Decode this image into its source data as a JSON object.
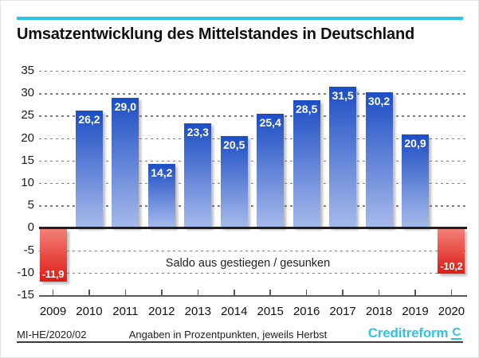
{
  "page": {
    "title": "Umsatzentwicklung des Mittelstandes in Deutschland",
    "footer": {
      "left": "MI-HE/2020/02",
      "center": "Angaben in Prozentpunkten, jeweils Herbst",
      "brand": "Creditreform",
      "brand_symbol": "C"
    },
    "colors": {
      "accent_cyan": "#2BC4E6",
      "bar_blue_top": "#1C4DC4",
      "bar_blue_bottom": "#A7BAEB",
      "bar_red_top": "#F28077",
      "bar_red_bottom": "#DD1B14",
      "grid": "#7E7E7E",
      "zero_line": "#1F1F1F",
      "axis": "#5A5A5A"
    }
  },
  "chart_data": {
    "type": "bar",
    "title": "Umsatzentwicklung des Mittelstandes in Deutschland",
    "categories": [
      "2009",
      "2010",
      "2011",
      "2012",
      "2013",
      "2014",
      "2015",
      "2016",
      "2017",
      "2018",
      "2019",
      "2020"
    ],
    "values": [
      -11.9,
      26.2,
      29.0,
      14.2,
      23.3,
      20.5,
      25.4,
      28.5,
      31.5,
      30.2,
      20.9,
      -10.2
    ],
    "labels": [
      "-11,9",
      "26,2",
      "29,0",
      "14,2",
      "23,3",
      "20,5",
      "25,4",
      "28,5",
      "31,5",
      "30,2",
      "20,9",
      "-10,2"
    ],
    "annotation": "Saldo aus gestiegen / gesunken",
    "xlabel": "",
    "ylabel": "",
    "ylim": [
      -15,
      35
    ],
    "ytick_step": 5,
    "grid": true,
    "legend": "none",
    "positive_color": "blue gradient",
    "negative_color": "red gradient"
  }
}
